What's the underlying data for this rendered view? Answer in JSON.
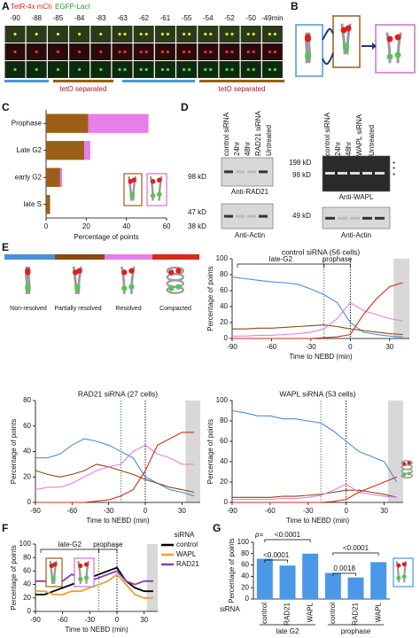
{
  "labels": [
    "A",
    "B",
    "C",
    "D",
    "E",
    "F",
    "G"
  ],
  "panel_a": {
    "channels": [
      "TetR-4x mCh",
      "EGFP-LacI"
    ],
    "timepoints": [
      "-90",
      "-88",
      "-85",
      "-84",
      "-83",
      "-63",
      "-62",
      "-61",
      "-55",
      "-54",
      "-52",
      "-50",
      "-49min"
    ],
    "phase_label": "tetO separated"
  },
  "panel_d": {
    "left_lanes": [
      "control siRNA",
      "24hr",
      "48hr",
      "RAD21 siRNA",
      "Untreated"
    ],
    "left_markers": [
      "98 kD",
      "47 kD",
      "38 kD"
    ],
    "left_antibodies": [
      "Anti-RAD21",
      "Anti-Actin"
    ],
    "right_lanes": [
      "control siRNA",
      "24hr",
      "48hr",
      "WAPL siRNA",
      "Untreated"
    ],
    "right_markers": [
      "198 kD",
      "98 kD",
      "49 kD"
    ],
    "right_antibodies": [
      "Anti-WAPL",
      "Anti-Actin"
    ],
    "asterisk": "*"
  },
  "chart_data": [
    {
      "type": "bar",
      "orientation": "horizontal",
      "categories": [
        "Prophase",
        "Late G2",
        "early G2",
        "late S"
      ],
      "series": [
        {
          "color": "#9b5f17",
          "values": [
            21,
            19,
            7,
            2
          ]
        },
        {
          "color": "#e87ee8",
          "values": [
            30,
            3,
            1,
            0
          ]
        }
      ],
      "xlim": [
        0,
        60
      ],
      "xticks": [
        0,
        20,
        40,
        60
      ],
      "xlabel": "Percentage of points"
    },
    {
      "type": "line",
      "title": "control siRNA (56 cells)",
      "x": [
        -90,
        -80,
        -70,
        -60,
        -50,
        -40,
        -30,
        -20,
        -10,
        0,
        10,
        20,
        30,
        40
      ],
      "series": [
        {
          "name": "Non-resolved",
          "color": "#4a90d9",
          "values": [
            77,
            75,
            73,
            71,
            70,
            68,
            62,
            55,
            45,
            20,
            8,
            5,
            3,
            2
          ]
        },
        {
          "name": "Partially resolved",
          "color": "#8b4a10",
          "values": [
            12,
            12,
            13,
            13,
            14,
            15,
            16,
            17,
            15,
            12,
            10,
            8,
            6,
            5
          ]
        },
        {
          "name": "Resolved",
          "color": "#e87ee8",
          "values": [
            3,
            3,
            4,
            4,
            5,
            6,
            8,
            12,
            25,
            45,
            35,
            30,
            25,
            22
          ]
        },
        {
          "name": "Compacted",
          "color": "#d42a1a",
          "values": [
            0,
            0,
            0,
            0,
            0,
            0,
            0,
            1,
            2,
            5,
            30,
            50,
            65,
            70
          ]
        }
      ],
      "xlim": [
        -90,
        45
      ],
      "xticks": [
        -90,
        -60,
        -30,
        0,
        30
      ],
      "ylim": [
        0,
        100
      ],
      "yticks": [
        0,
        20,
        40,
        60,
        80,
        100
      ],
      "xlabel": "Time to NEBD (min)",
      "ylabel": "Percentage of points",
      "vlines": [
        -20,
        0
      ],
      "vline_colors": [
        "#3a8a3a",
        "#000000"
      ],
      "phase_labels": [
        "late-G2",
        "prophase"
      ],
      "shade": [
        33,
        45
      ]
    },
    {
      "type": "line",
      "title": "RAD21 siRNA (27 cells)",
      "x": [
        -90,
        -80,
        -70,
        -60,
        -50,
        -40,
        -30,
        -20,
        -10,
        0,
        10,
        20,
        30,
        40
      ],
      "series": [
        {
          "color": "#4a90d9",
          "values": [
            35,
            35,
            38,
            45,
            50,
            48,
            45,
            40,
            35,
            20,
            15,
            10,
            8,
            5
          ]
        },
        {
          "color": "#8b4a10",
          "values": [
            25,
            22,
            20,
            22,
            25,
            30,
            28,
            25,
            22,
            18,
            15,
            12,
            10,
            8
          ]
        },
        {
          "color": "#e87ee8",
          "values": [
            10,
            12,
            12,
            15,
            20,
            25,
            28,
            30,
            40,
            45,
            38,
            35,
            30,
            30
          ]
        },
        {
          "color": "#d42a1a",
          "values": [
            0,
            0,
            0,
            0,
            0,
            1,
            2,
            5,
            10,
            25,
            45,
            50,
            55,
            55
          ]
        }
      ],
      "xlim": [
        -90,
        45
      ],
      "xticks": [
        -90,
        -60,
        -30,
        0,
        30
      ],
      "ylim": [
        0,
        80
      ],
      "yticks": [
        0,
        20,
        40,
        60,
        80
      ],
      "xlabel": "Time to NEBD (min)",
      "ylabel": "Percentage of points",
      "vlines": [
        -20,
        0
      ],
      "vline_colors": [
        "#3a8a3a",
        "#000000"
      ],
      "shade": [
        33,
        45
      ]
    },
    {
      "type": "line",
      "title": "WAPL siRNA (53 cells)",
      "x": [
        -90,
        -80,
        -70,
        -60,
        -50,
        -40,
        -30,
        -20,
        -10,
        0,
        10,
        20,
        30,
        40
      ],
      "series": [
        {
          "color": "#4a90d9",
          "values": [
            90,
            88,
            85,
            85,
            82,
            82,
            80,
            78,
            70,
            60,
            50,
            45,
            40,
            20
          ]
        },
        {
          "color": "#8b4a10",
          "values": [
            5,
            5,
            5,
            5,
            6,
            6,
            7,
            8,
            10,
            12,
            12,
            10,
            8,
            5
          ]
        },
        {
          "color": "#e87ee8",
          "values": [
            3,
            3,
            3,
            3,
            4,
            4,
            5,
            7,
            12,
            18,
            10,
            8,
            6,
            5
          ]
        },
        {
          "color": "#d42a1a",
          "values": [
            0,
            0,
            0,
            0,
            0,
            0,
            0,
            0,
            1,
            3,
            10,
            15,
            20,
            25
          ]
        }
      ],
      "xlim": [
        -90,
        45
      ],
      "xticks": [
        -90,
        -60,
        -30,
        0,
        30
      ],
      "ylim": [
        0,
        100
      ],
      "yticks": [
        0,
        20,
        40,
        60,
        80,
        100
      ],
      "xlabel": "Time to NEBD (min)",
      "ylabel": "Percentage of points",
      "vlines": [
        -20,
        0
      ],
      "vline_colors": [
        "#3a8a3a",
        "#000000"
      ],
      "shade": [
        33,
        45
      ]
    },
    {
      "type": "line",
      "legend_title": "siRNA",
      "x": [
        -90,
        -80,
        -70,
        -60,
        -50,
        -40,
        -30,
        -20,
        -10,
        0,
        10,
        20,
        30,
        40
      ],
      "series": [
        {
          "name": "control",
          "color": "#000000",
          "values": [
            25,
            25,
            30,
            35,
            40,
            45,
            50,
            55,
            60,
            65,
            45,
            35,
            30,
            30
          ]
        },
        {
          "name": "WAPL",
          "color": "#f0a030",
          "values": [
            30,
            30,
            25,
            25,
            30,
            30,
            35,
            40,
            45,
            55,
            40,
            25,
            20,
            20
          ]
        },
        {
          "name": "RAD21",
          "color": "#8a3ab9",
          "values": [
            45,
            45,
            40,
            45,
            55,
            50,
            45,
            50,
            55,
            60,
            45,
            40,
            45,
            45
          ]
        }
      ],
      "xlim": [
        -90,
        45
      ],
      "xticks": [
        -90,
        -60,
        -30,
        0,
        30
      ],
      "ylim": [
        0,
        100
      ],
      "yticks": [
        0,
        20,
        40,
        60,
        80,
        100
      ],
      "xlabel": "Time to NEBD (min)",
      "ylabel": "Percentage of points",
      "vlines": [
        -20,
        0
      ],
      "vline_colors": [
        "#3a8a3a",
        "#000000"
      ],
      "phase_labels": [
        "late-G2",
        "prophase"
      ],
      "shade": [
        33,
        45
      ]
    },
    {
      "type": "bar",
      "categories": [
        "control",
        "RAD21",
        "WAPL",
        "control",
        "RAD21",
        "WAPL"
      ],
      "values": [
        71,
        59,
        80,
        46,
        38,
        65
      ],
      "color": "#4a98e8",
      "ylim": [
        0,
        100
      ],
      "yticks": [
        0,
        20,
        40,
        60,
        80,
        100
      ],
      "ylabel": "Percentage of points",
      "xlabel": "siRNA",
      "groups": [
        "late G2",
        "prophase"
      ],
      "p_prefix": "p=",
      "comparisons": [
        "<0.0001",
        "<0.0001",
        "0.0018",
        "<0.0001"
      ]
    }
  ]
}
